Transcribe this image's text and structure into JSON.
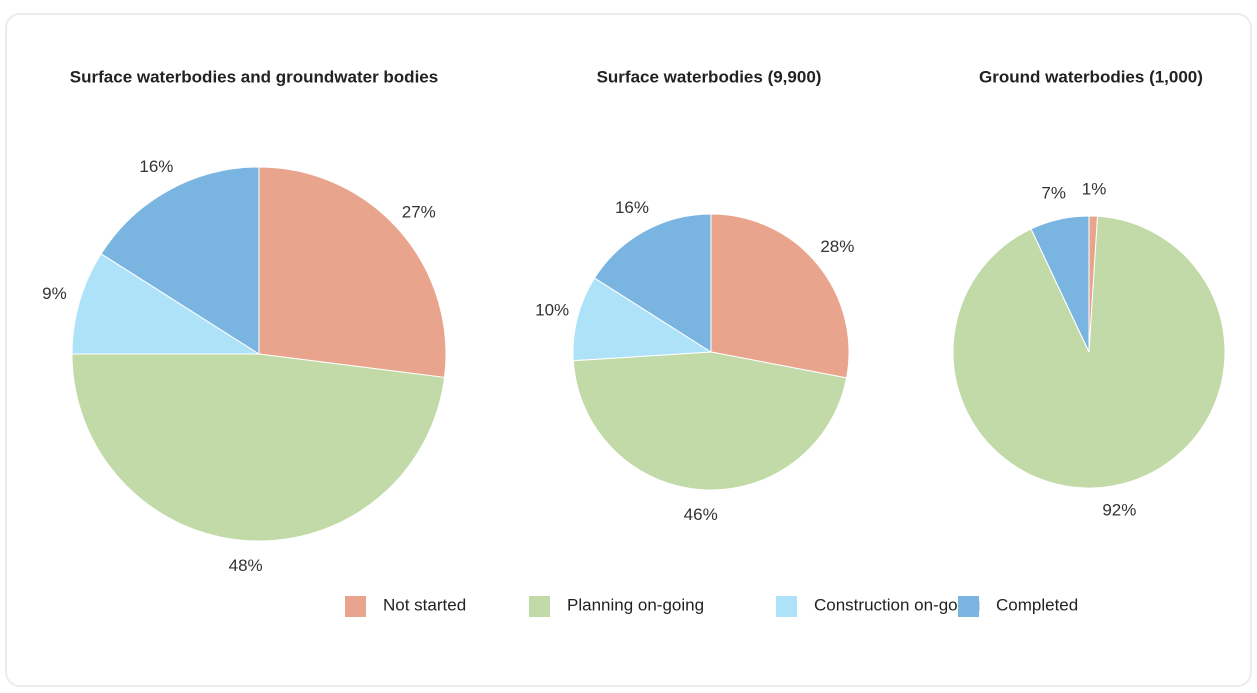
{
  "legend": {
    "labels": [
      "Not started",
      "Planning on-going",
      "Construction on-going",
      "Completed"
    ],
    "colors": [
      "#e8a48c",
      "#c2d9a8",
      "#aee2f8",
      "#7ab5e2"
    ]
  },
  "chart_data": [
    {
      "type": "pie",
      "title": "Surface waterbodies and groundwater bodies",
      "values": [
        27,
        48,
        9,
        16
      ],
      "value_labels": [
        "27%",
        "48%",
        "9%",
        "16%"
      ]
    },
    {
      "type": "pie",
      "title": "Surface waterbodies (9,900)",
      "values": [
        28,
        46,
        10,
        16
      ],
      "value_labels": [
        "28%",
        "46%",
        "10%",
        "16%"
      ]
    },
    {
      "type": "pie",
      "title": "Ground waterbodies (1,000)",
      "values": [
        1,
        92,
        0,
        7
      ],
      "value_labels": [
        "1%",
        "92%",
        null,
        "7%"
      ]
    }
  ]
}
